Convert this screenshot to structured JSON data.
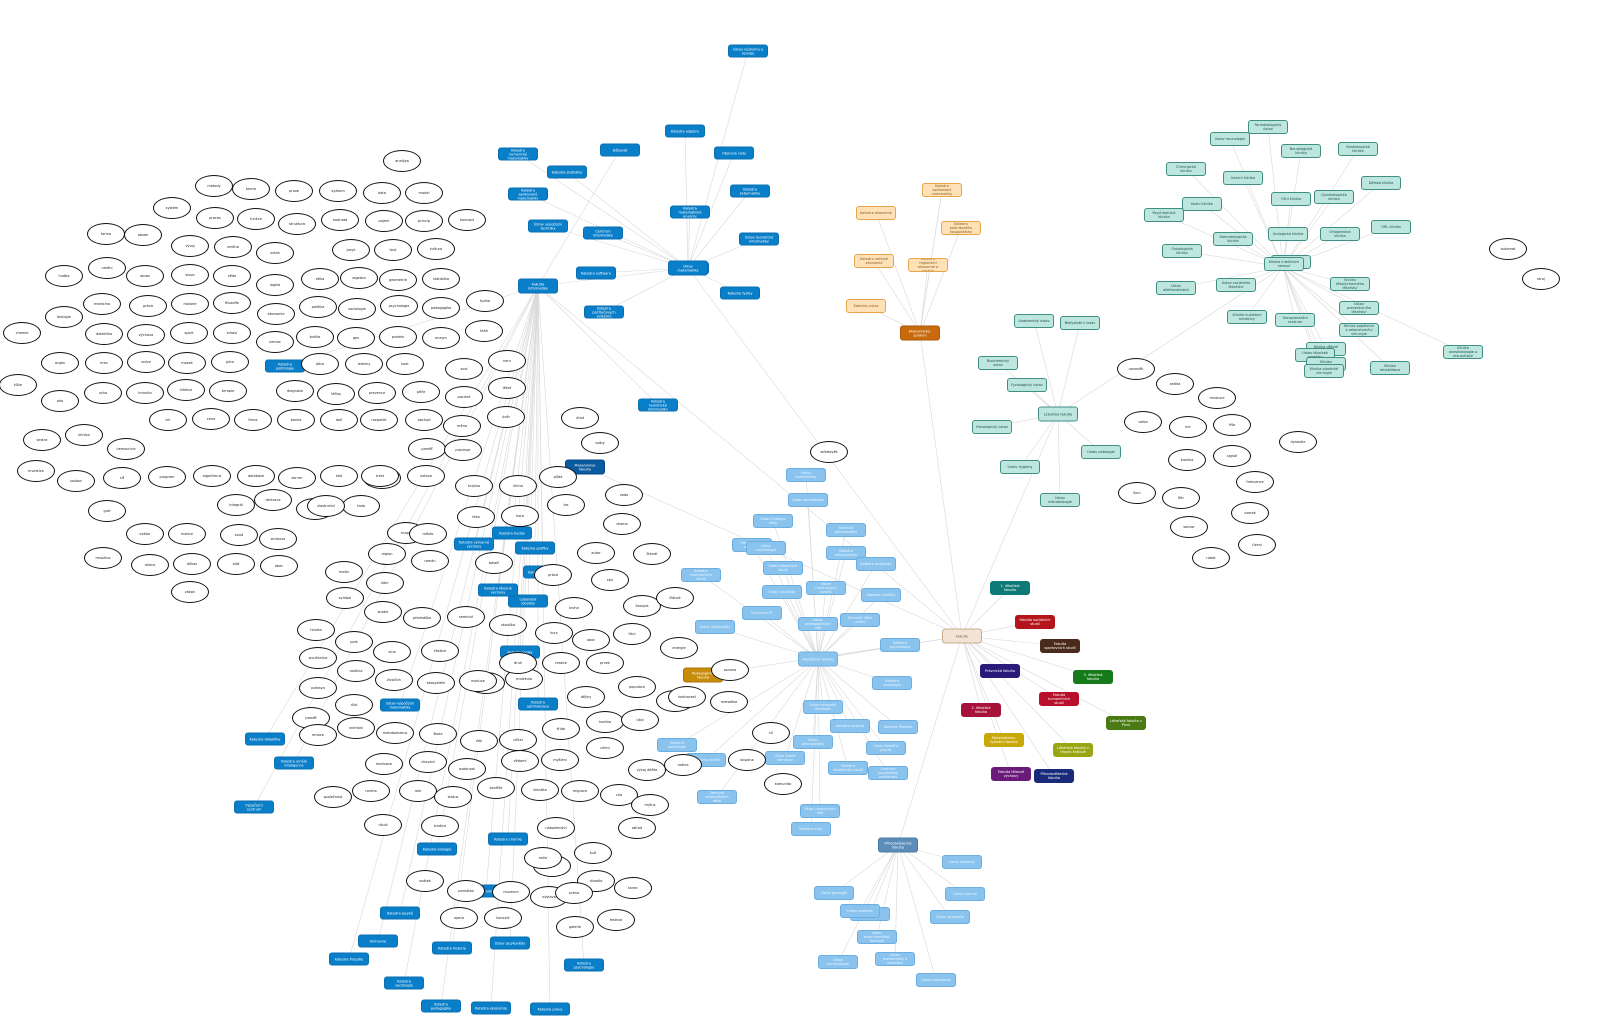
{
  "palette": {
    "blue": {
      "fill": "#0a7fc9",
      "border": "#0a6fb0",
      "text": "#ffffff"
    },
    "darkblue": {
      "fill": "#0a5aa0",
      "border": "#08488a",
      "text": "#ffffff"
    },
    "lightblue": {
      "fill": "#8ac4ee",
      "border": "#6aaee2",
      "text": "#eaf5ff"
    },
    "teal": {
      "fill": "#bde6df",
      "border": "#3f8f84",
      "text": "#1c4f47"
    },
    "peach": {
      "fill": "#ffe1b8",
      "border": "#e7a550",
      "text": "#8a5a1c"
    },
    "orange": {
      "fill": "#c96b0c",
      "border": "#a9580a",
      "text": "#ffffff"
    },
    "center": {
      "fill": "#f3e3d4",
      "border": "#c9a98a",
      "text": "#7a5a3a"
    },
    "steel": {
      "fill": "#5b8db8",
      "border": "#4a7aa3",
      "text": "#ffffff"
    },
    "gold": {
      "fill": "#c78c0a",
      "border": "#a97508",
      "text": "#ffffff"
    },
    "edge": "#d9d9d9"
  },
  "hubs": [
    {
      "key": "h1",
      "label": "Masarykova fakulta",
      "color": "darkblue"
    },
    {
      "key": "h2",
      "label": "Lékařská fakulta",
      "color": "teal"
    },
    {
      "key": "h3",
      "label": "Ekonomicko-správní",
      "color": "orange"
    },
    {
      "key": "h4",
      "label": "Fakulty",
      "color": "center"
    },
    {
      "key": "h5",
      "label": "Přírodovědecká fakulta",
      "color": "steel"
    },
    {
      "key": "h6",
      "label": "Pedagogická fakulta",
      "color": "gold"
    },
    {
      "key": "h7",
      "label": "Filozofická fakulta",
      "color": "lightblue"
    },
    {
      "key": "h8",
      "label": "Fakulta informatiky",
      "color": "blue"
    },
    {
      "key": "h9",
      "label": "Ústav matematiky",
      "color": "blue"
    }
  ],
  "faculties": [
    {
      "label": "1. lékařská fakulta",
      "fill": "#0e7a77"
    },
    {
      "label": "Fakulta sociálních studií",
      "fill": "#b5141a"
    },
    {
      "label": "Fakulta sportovních studií",
      "fill": "#4a2a1a"
    },
    {
      "label": "Právnická fakulta",
      "fill": "#2a1a7a"
    },
    {
      "label": "3. lékařská fakulta",
      "fill": "#147a1a"
    },
    {
      "label": "2. lékařská fakulta",
      "fill": "#a8123a"
    },
    {
      "label": "Fakulta humanitních studií",
      "fill": "#b80f2a"
    },
    {
      "label": "Lékařská fakulta v Plzni",
      "fill": "#4a7a14"
    },
    {
      "label": "Matematicko-fyzikální fakulta",
      "fill": "#c9a80a"
    },
    {
      "label": "Lékařská fakulta v Hradci Králové",
      "fill": "#9aa514"
    },
    {
      "label": "Fakulta tělesné výchovy",
      "fill": "#6a1a7a"
    },
    {
      "label": "Přírodovědecká fakulta",
      "fill": "#1a2a7a"
    }
  ],
  "labels": {
    "blue": [
      "Ústav výzkumu a rozvoje",
      "Katedra algebry",
      "Oborové rady",
      "Katedra kybernetiky",
      "Katedra matematické analýzy",
      "Katedra geometrie",
      "Ústav teoretické informatiky",
      "Katedra fyziky",
      "Katedra numerické matematiky",
      "Katedra statistiky",
      "Katedra aplikované matematiky",
      "Ústav výpočetní techniky",
      "Centrum informatiky",
      "Katedra softwaru",
      "Katedra počítačových systémů",
      "Katedra sítí",
      "Katedra teoretické informatiky",
      "Katedra grafiky",
      "Katedra databází",
      "Laboratoř robotiky",
      "Katedra logiky",
      "Katedra optimalizace",
      "Ústav výpočetní matematiky",
      "Katedra didaktiky",
      "Katedra umělé inteligence",
      "Výpočetní centrum",
      "Katedra biologie",
      "Katedra chemie",
      "Studijní oddělení",
      "Katedra jazyků",
      "Knihovna",
      "Katedra filozofie",
      "Katedra historie",
      "Ústav jazykovědy",
      "Katedra psychologie",
      "Katedra sociologie",
      "Katedra pedagogiky",
      "Katedra ekonomie",
      "Katedra práva",
      "Katedra politologie",
      "Katedra hudby",
      "Katedra výtvarné výchovy",
      "Katedra tělesné výchovy",
      "Děkanát"
    ],
    "lightblue": [
      "Ústav bohemistiky",
      "Ústav archeologie",
      "Ústav hudební vědy",
      "Seminář germanistiky",
      "Ústav filmu a audiovize",
      "Katedra religionistiky",
      "Ústav klasických studií",
      "Katedra anglistiky",
      "Ústav slavistiky",
      "Ústav románských jazyků",
      "Katedra estetiky",
      "Knihovna FF",
      "Ústav pedagogických věd",
      "Seminář dějin umění",
      "Katedra informačních studií",
      "Ústav jazykovědy",
      "Katedra psychologie",
      "Katedra sociologie",
      "Ústav evropské etnologie",
      "Katedra historie",
      "Katedra filozofie",
      "Ústav českého jazyka",
      "Ústav orientalistiky",
      "Katedra divadelních studií",
      "Centrum jazykového vzdělávání",
      "Ústav české literatury",
      "Katedra politologie",
      "Seminář středověkých dějin",
      "Ústav pomocných věd",
      "Katedra etiky",
      "Knihovna umění",
      "Ústav muzikologie"
    ],
    "steel_children": [
      "Ústav botaniky",
      "Ústav chemie",
      "Ústav geologie",
      "Ústav fyziky",
      "Ústav geografie",
      "Ústav experimentální biologie",
      "Ústav matematiky a statistiky",
      "Ústav antropologie",
      "Ústav biochemie",
      "Ústav zoologie"
    ],
    "peach": [
      "Katedra financí",
      "Katedra ekonomie",
      "Katedra podnikového hospodářství",
      "Katedra veřejné ekonomie",
      "Katedra regionální ekonomie a správy",
      "Katedra práva",
      "Katedra aplikované matematiky"
    ],
    "teal": [
      "Anatomický ústav",
      "Biofyzikální ústav",
      "Biochemický ústav",
      "Fyziologický ústav",
      "Histologický ústav",
      "Ústav patologie",
      "Ústav hygieny",
      "Ústav mikrobiologie",
      "Farmakologický ústav",
      "Ústav imunologie",
      "Kardiologická klinika",
      "Neurologická klinika",
      "Chirurgická klinika",
      "Interní klinika",
      "Dětská klinika",
      "Gynekologická klinika",
      "Oční klinika",
      "Kožní klinika",
      "Psychiatrická klinika",
      "Ortopedická klinika",
      "Urologická klinika",
      "ORL klinika",
      "Stomatologická klinika",
      "Onkologická klinika",
      "Radiologická klinika",
      "Klinika infekčních nemocí",
      "Klinika tělovýchovného lékařství",
      "Ústav sociálního lékařství",
      "Ústav ošetřovatelství",
      "Ústav preventivního lékařství",
      "Klinika nukleární medicíny",
      "Transplantační centrum",
      "Klinika popálenin a rekonstrukční chirurgie",
      "Klinika dětské neurologie",
      "Ústav lékařské genetiky",
      "Klinika pneumologie",
      "Klinika anesteziologie a resuscitace",
      "Klinika plastické chirurgie",
      "Klinika rehabilitace"
    ],
    "oval": [
      "analýza",
      "metody",
      "teorie",
      "praxe",
      "výzkum",
      "data",
      "model",
      "systém",
      "proces",
      "funkce",
      "struktura",
      "hodnota",
      "pojem",
      "princip",
      "koncept",
      "forma",
      "obsah",
      "vývoj",
      "změna",
      "vztah",
      "jazyk",
      "text",
      "kultura",
      "umění",
      "hudba",
      "obraz",
      "slovo",
      "věda",
      "logika",
      "etika",
      "algebra",
      "geometrie",
      "statistika",
      "fyzika",
      "chemie",
      "biologie",
      "medicína",
      "právo",
      "historie",
      "filozofie",
      "ekonomie",
      "politika",
      "sociologie",
      "psychologie",
      "pedagogika",
      "didaktika",
      "výchova",
      "sport",
      "zdraví",
      "nemoc",
      "buňka",
      "gen",
      "protein",
      "enzym",
      "tkáň",
      "orgán",
      "krev",
      "srdce",
      "mozek",
      "plíce",
      "játra",
      "ledviny",
      "kost",
      "sval",
      "nerv",
      "kůže",
      "oko",
      "ucho",
      "imunita",
      "infekce",
      "terapie",
      "diagnóza",
      "léčba",
      "prevence",
      "péče",
      "pacient",
      "lékař",
      "sestra",
      "klinika",
      "nemocnice",
      "trh",
      "cena",
      "firma",
      "banka",
      "daň",
      "rozpočet",
      "obchod",
      "měna",
      "úvěr",
      "investice",
      "soubor",
      "síť",
      "program",
      "algoritmus",
      "databáze",
      "server",
      "kód",
      "jazyk C",
      "paměť",
      "procesor",
      "graf",
      "vektor",
      "matice",
      "integrál",
      "derivace",
      "limita",
      "řada",
      "množina",
      "relace",
      "důkaz",
      "stát",
      "obec",
      "zákon",
      "soud",
      "smlouva",
      "vlastnictví",
      "trest",
      "ústava",
      "úřad",
      "volby",
      "mapa",
      "krajina",
      "klima",
      "půda",
      "voda",
      "les",
      "řeka",
      "hora",
      "město",
      "region",
      "román",
      "báseň",
      "drama",
      "próza",
      "autor",
      "čtenář",
      "styl",
      "žánr",
      "motiv",
      "symbol",
      "kniha",
      "časopis",
      "článek",
      "studie",
      "přednáška",
      "seminář",
      "zkouška",
      "kurz",
      "obor",
      "titul",
      "energie",
      "hmota",
      "pole",
      "vlna",
      "částice",
      "atom",
      "molekula",
      "reakce",
      "prvek",
      "sloučenina",
      "rostlina",
      "živočich",
      "ekosystém",
      "evoluce",
      "druh",
      "populace",
      "habitat",
      "potrava",
      "růst",
      "metabolismus",
      "škola",
      "žák",
      "učitel",
      "třída",
      "hodina",
      "úkol",
      "hodnocení",
      "osnova",
      "metodika",
      "cíl",
      "paměť",
      "vnímání",
      "emoce",
      "motivace",
      "chování",
      "osobnost",
      "vědomí",
      "myšlení",
      "učení",
      "vývoj dítěte",
      "rodina",
      "skupina",
      "komunita",
      "společnost",
      "norma",
      "role",
      "status",
      "konflikt",
      "identita",
      "migrace",
      "víra",
      "mýtus",
      "rituál",
      "tradice",
      "náboženství",
      "kult",
      "obřad",
      "svátek",
      "památka",
      "muzeum",
      "film",
      "divadlo",
      "tanec",
      "opera",
      "koncert",
      "výstava",
      "galerie",
      "festival",
      "scéna",
      "režie",
      "dějiny",
      "středověk",
      "novověk",
      "antika",
      "revoluce",
      "válka",
      "mír",
      "říše",
      "dynastie",
      "kronika",
      "signál",
      "šum",
      "filtr",
      "frekvence",
      "vzorek",
      "senzor",
      "řízení",
      "robot",
      "automat",
      "stroj"
    ]
  }
}
